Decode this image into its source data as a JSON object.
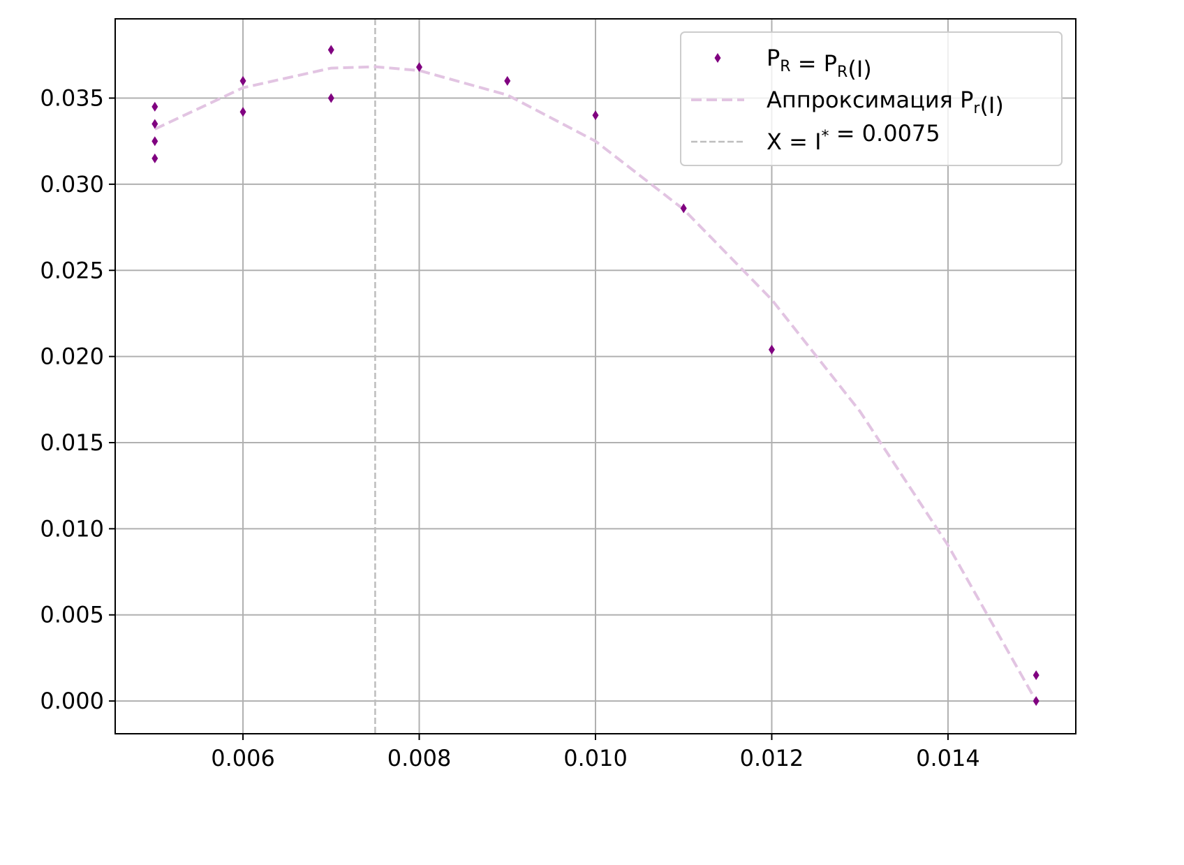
{
  "chart_data": {
    "type": "scatter",
    "title": "",
    "xlabel": "",
    "ylabel": "",
    "xlim": [
      0.00455,
      0.01545
    ],
    "ylim": [
      -0.0019,
      0.0396
    ],
    "grid": true,
    "legend_position": "top-right",
    "x_ticks": [
      "0.006",
      "0.008",
      "0.010",
      "0.012",
      "0.014"
    ],
    "x_tick_values": [
      0.006,
      0.008,
      0.01,
      0.012,
      0.014
    ],
    "y_ticks": [
      "0.000",
      "0.005",
      "0.010",
      "0.015",
      "0.020",
      "0.025",
      "0.030",
      "0.035"
    ],
    "y_tick_values": [
      0.0,
      0.005,
      0.01,
      0.015,
      0.02,
      0.025,
      0.03,
      0.035
    ],
    "series": [
      {
        "name": "P_R = P_R(I)",
        "kind": "scatter",
        "marker": "thin-diamond",
        "color": "#800080",
        "x": [
          0.005,
          0.005,
          0.005,
          0.005,
          0.006,
          0.006,
          0.007,
          0.007,
          0.008,
          0.009,
          0.01,
          0.011,
          0.012,
          0.015,
          0.015
        ],
        "y": [
          0.0345,
          0.0335,
          0.0325,
          0.0315,
          0.036,
          0.0342,
          0.0378,
          0.035,
          0.0368,
          0.036,
          0.034,
          0.0286,
          0.0204,
          0.0015,
          0.0
        ]
      },
      {
        "name": "Аппроксимация P_r(I)",
        "kind": "line",
        "style": "dashed",
        "color": "#e2c4e2",
        "x": [
          0.005,
          0.006,
          0.007,
          0.0075,
          0.008,
          0.009,
          0.01,
          0.011,
          0.012,
          0.013,
          0.014,
          0.015
        ],
        "y": [
          0.0332,
          0.0356,
          0.03674,
          0.03682,
          0.0366,
          0.03518,
          0.0325,
          0.02854,
          0.0233,
          0.01682,
          0.00904,
          0.0
        ]
      },
      {
        "name": "X = I^* = 0.0075",
        "kind": "vline",
        "style": "dashed",
        "color": "#bdbdbd",
        "x": 0.0075
      }
    ]
  }
}
